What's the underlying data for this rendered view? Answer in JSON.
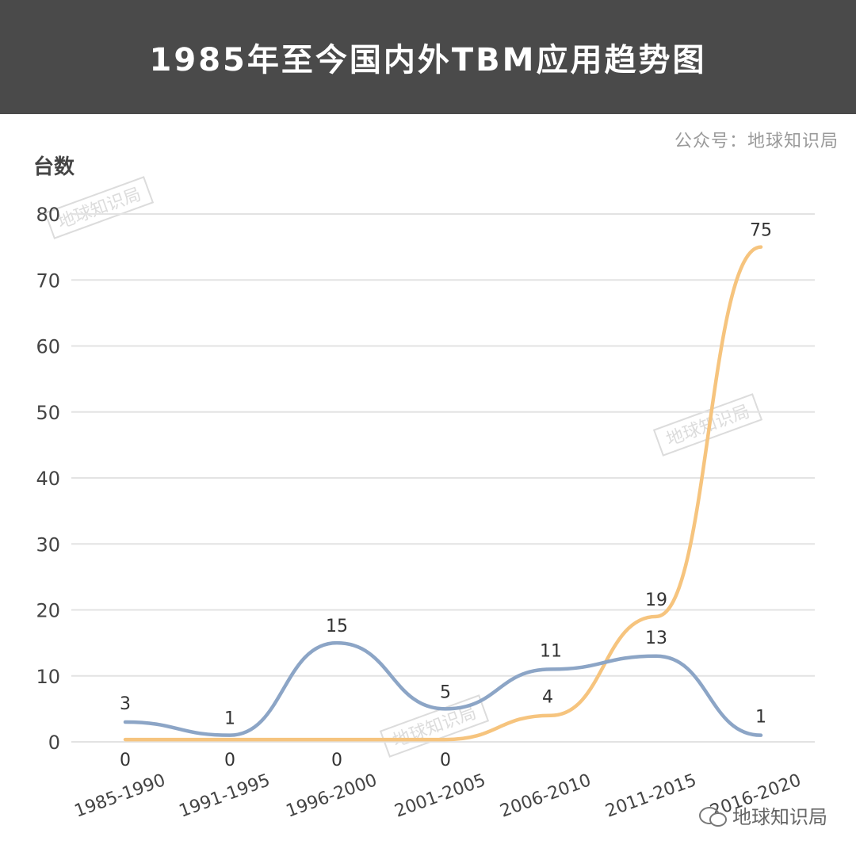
{
  "header": {
    "title": "1985年至今国内外TBM应用趋势图"
  },
  "source_label": "公众号：地球知识局",
  "bottom_watermark": "地球知识局",
  "diagonal_watermarks": [
    "地球知识局",
    "地球知识局",
    "地球知识局"
  ],
  "colors": {
    "blue": "#8ca5c6",
    "orange": "#f6c47e",
    "grid": "#e3e3e3",
    "text": "#444444"
  },
  "chart_data": {
    "type": "line",
    "title": "1985年至今国内外TBM应用趋势图",
    "xlabel": "",
    "ylabel": "台数",
    "categories": [
      "1985-1990",
      "1991-1995",
      "1996-2000",
      "2001-2005",
      "2006-2010",
      "2011-2015",
      "2016-2020"
    ],
    "ylim": [
      0,
      80
    ],
    "yticks": [
      0,
      10,
      20,
      30,
      40,
      50,
      60,
      70,
      80
    ],
    "grid": true,
    "legend": "none",
    "series": [
      {
        "values": [
          3,
          1,
          15,
          5,
          11,
          13,
          1
        ],
        "data_labels": [
          "3",
          "1",
          "15",
          "5",
          "11",
          "13",
          "1"
        ],
        "color": "#8ca5c6"
      },
      {
        "values": [
          0,
          0,
          0,
          0,
          4,
          19,
          75
        ],
        "data_labels": [
          "0",
          "0",
          "0",
          "0",
          "4",
          "19",
          "75"
        ],
        "color": "#f6c47e"
      }
    ]
  }
}
